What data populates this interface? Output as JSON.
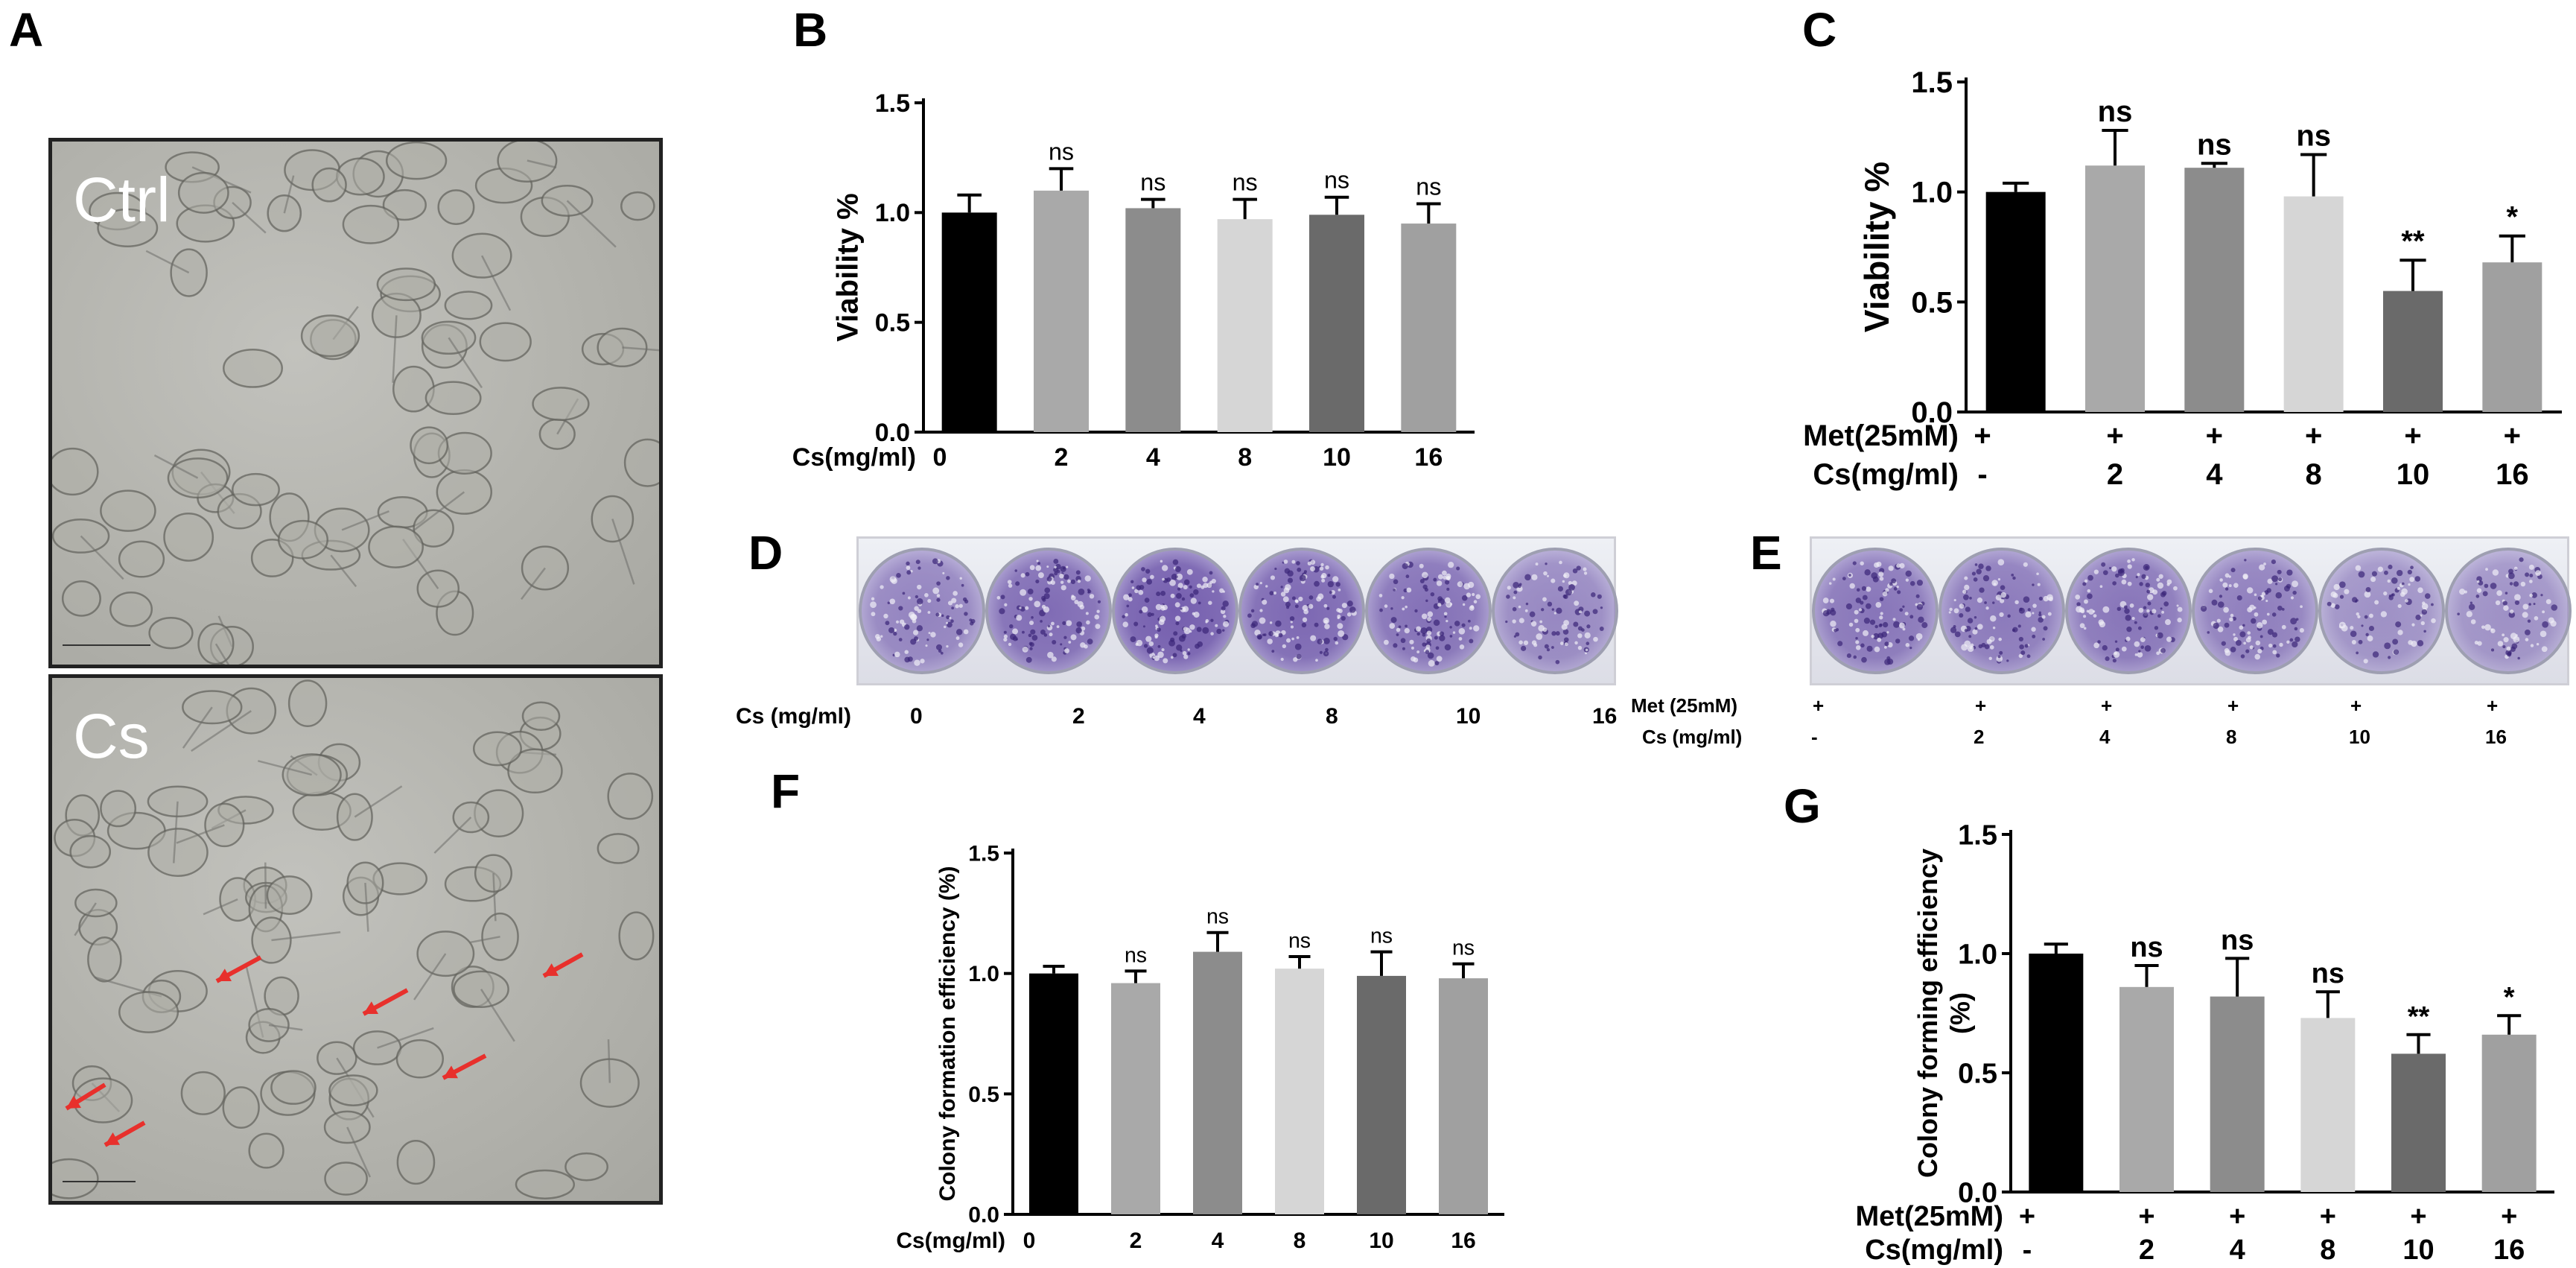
{
  "panels": {
    "A": "A",
    "B": "B",
    "C": "C",
    "D": "D",
    "E": "E",
    "F": "F",
    "G": "G"
  },
  "micrographs": {
    "top_label": "Ctrl",
    "bottom_label": "Cs"
  },
  "colors": {
    "bar_fills": [
      "#000000",
      "#a9a9a9",
      "#8c8c8c",
      "#d6d6d6",
      "#6a6a6a",
      "#a0a0a0"
    ],
    "arrow": "#e8302c",
    "stain": "#5b3fa0"
  },
  "plate_D": {
    "row_title": "Cs (mg/ml)",
    "labels": [
      "0",
      "2",
      "4",
      "8",
      "10",
      "16"
    ],
    "colony_density": [
      0.45,
      0.7,
      0.85,
      0.75,
      0.65,
      0.4
    ]
  },
  "plate_E": {
    "row1_title": "Met (25mM)",
    "row2_title": "Cs (mg/ml)",
    "row1": [
      "+",
      "+",
      "+",
      "+",
      "+",
      "+"
    ],
    "row2": [
      "-",
      "2",
      "4",
      "8",
      "10",
      "16"
    ],
    "colony_density": [
      0.6,
      0.55,
      0.6,
      0.5,
      0.3,
      0.3
    ]
  },
  "chart_data": [
    {
      "id": "B",
      "type": "bar",
      "ylabel": "Viability %",
      "ylim": [
        0,
        1.5
      ],
      "yticks": [
        "0.0",
        "0.5",
        "1.0",
        "1.5"
      ],
      "row_labels": [
        "Cs(mg/ml)"
      ],
      "rows": [
        [
          "0",
          "2",
          "4",
          "8",
          "10",
          "16"
        ]
      ],
      "values": [
        1.0,
        1.1,
        1.02,
        0.97,
        0.99,
        0.95
      ],
      "errors": [
        0.08,
        0.1,
        0.04,
        0.09,
        0.08,
        0.09
      ],
      "annotations": [
        "",
        "ns",
        "ns",
        "ns",
        "ns",
        "ns"
      ]
    },
    {
      "id": "C",
      "type": "bar",
      "ylabel": "Viability %",
      "ylim": [
        0,
        1.5
      ],
      "yticks": [
        "0.0",
        "0.5",
        "1.0",
        "1.5"
      ],
      "row_labels": [
        "Met(25mM)",
        "Cs(mg/ml)"
      ],
      "rows": [
        [
          "+",
          "+",
          "+",
          "+",
          "+",
          "+"
        ],
        [
          "-",
          "2",
          "4",
          "8",
          "10",
          "16"
        ]
      ],
      "values": [
        1.0,
        1.12,
        1.11,
        0.98,
        0.55,
        0.68
      ],
      "errors": [
        0.04,
        0.16,
        0.02,
        0.19,
        0.14,
        0.12
      ],
      "annotations": [
        "",
        "ns",
        "ns",
        "ns",
        "**",
        "*"
      ]
    },
    {
      "id": "F",
      "type": "bar",
      "ylabel": "Colony formation efficiency (%)",
      "ylim": [
        0,
        1.5
      ],
      "yticks": [
        "0.0",
        "0.5",
        "1.0",
        "1.5"
      ],
      "row_labels": [
        "Cs(mg/ml)"
      ],
      "rows": [
        [
          "0",
          "2",
          "4",
          "8",
          "10",
          "16"
        ]
      ],
      "values": [
        1.0,
        0.96,
        1.09,
        1.02,
        0.99,
        0.98
      ],
      "errors": [
        0.03,
        0.05,
        0.08,
        0.05,
        0.1,
        0.06
      ],
      "annotations": [
        "",
        "ns",
        "ns",
        "ns",
        "ns",
        "ns"
      ]
    },
    {
      "id": "G",
      "type": "bar",
      "ylabel": "Colony forming efficiency",
      "ylabel2": "(%)",
      "ylim": [
        0,
        1.5
      ],
      "yticks": [
        "0.0",
        "0.5",
        "1.0",
        "1.5"
      ],
      "row_labels": [
        "Met(25mM)",
        "Cs(mg/ml)"
      ],
      "rows": [
        [
          "+",
          "+",
          "+",
          "+",
          "+",
          "+"
        ],
        [
          "-",
          "2",
          "4",
          "8",
          "10",
          "16"
        ]
      ],
      "values": [
        1.0,
        0.86,
        0.82,
        0.73,
        0.58,
        0.66
      ],
      "errors": [
        0.04,
        0.09,
        0.16,
        0.11,
        0.08,
        0.08
      ],
      "annotations": [
        "",
        "ns",
        "ns",
        "ns",
        "**",
        "*"
      ]
    }
  ]
}
